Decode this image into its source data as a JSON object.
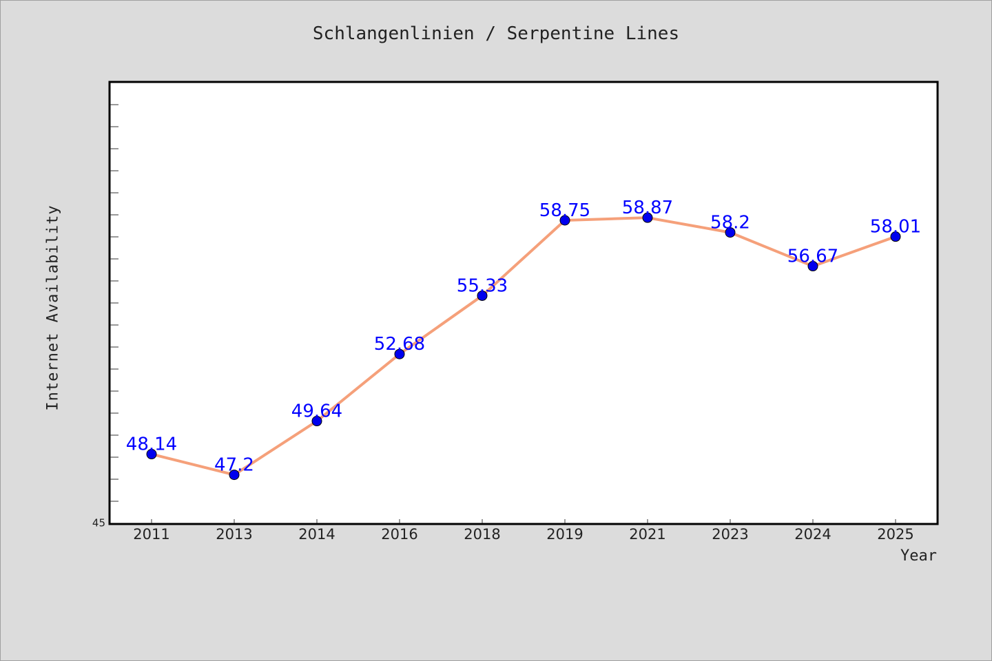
{
  "chart_data": {
    "type": "line",
    "title": "Schlangenlinien / Serpentine Lines",
    "xlabel": "Year",
    "ylabel": "Internet Availability",
    "categories": [
      "2011",
      "2013",
      "2014",
      "2016",
      "2018",
      "2019",
      "2021",
      "2023",
      "2024",
      "2025"
    ],
    "series": [
      {
        "values": [
          48.14,
          47.2,
          49.64,
          52.68,
          55.33,
          58.75,
          58.87,
          58.2,
          56.67,
          58.01
        ],
        "data_labels": [
          "48.14",
          "47.2",
          "49.64",
          "52.68",
          "55.33",
          "58.75",
          "58.87",
          "58.2",
          "56.67",
          "58.01"
        ]
      }
    ],
    "ytick_label": "45",
    "ylim": [
      45,
      65
    ],
    "y_minor_tick_step": 1,
    "grid": false,
    "colors": {
      "line": "#f5a07a",
      "marker": "#0000ee",
      "data_label": "#0000ff",
      "plot_background": "#ffffff",
      "figure_background": "#dcdcdc"
    }
  }
}
